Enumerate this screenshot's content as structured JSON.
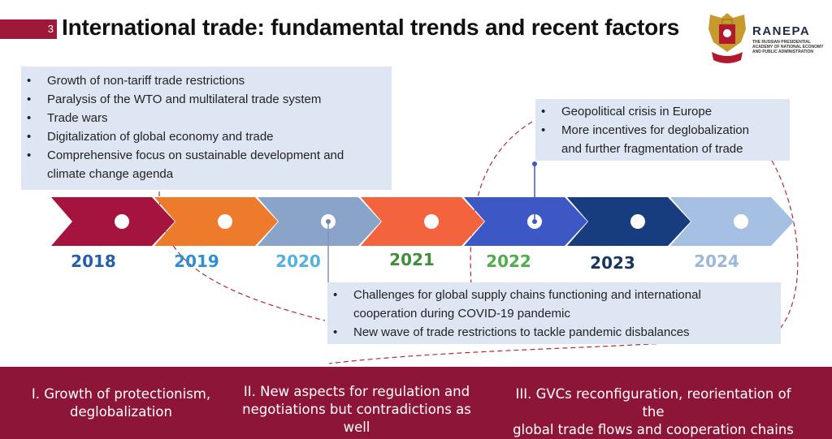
{
  "slide_number": "3",
  "title": "International trade: fundamental trends and recent factors",
  "brand": {
    "name": "RANEPA",
    "subtitle": "THE RUSSIAN PRESIDENTIAL ACADEMY OF NATIONAL ECONOMY AND PUBLIC ADMINISTRATION"
  },
  "box_top_left": {
    "items": [
      "Growth of non-tariff trade restrictions",
      "Paralysis of the WTO and multilateral trade system",
      "Trade wars",
      "Digitalization of global economy and trade",
      "Comprehensive focus on sustainable development and climate change agenda"
    ]
  },
  "box_top_right": {
    "items": [
      "Geopolitical crisis in Europe",
      "More incentives for deglobalization and further fragmentation of trade"
    ]
  },
  "box_bottom": {
    "items": [
      "Challenges for global supply chains functioning and international cooperation during COVID-19 pandemic",
      "New wave of trade restrictions to tackle pandemic disbalances"
    ]
  },
  "timeline": {
    "years": [
      "2018",
      "2019",
      "2020",
      "2021",
      "2022",
      "2023",
      "2024"
    ],
    "arrow_colors": [
      "#a5143f",
      "#ee7a2b",
      "#8aa3c9",
      "#f3643e",
      "#3d58c4",
      "#173d7f",
      "#a6c0e3"
    ],
    "year_colors": [
      "#2660a8",
      "#2f8fd0",
      "#56b0e2",
      "#3d8f3a",
      "#4fae49",
      "#17365f",
      "#9ab8dd"
    ]
  },
  "footer": {
    "col1": [
      "I. Growth of protectionism,",
      "deglobalization"
    ],
    "col2": [
      "II. New aspects for regulation and",
      "negotiations but contradictions as well"
    ],
    "col3": [
      "III. GVCs reconfiguration, reorientation  of the",
      "global trade flows and cooperation chains"
    ],
    "page_num": "3"
  }
}
